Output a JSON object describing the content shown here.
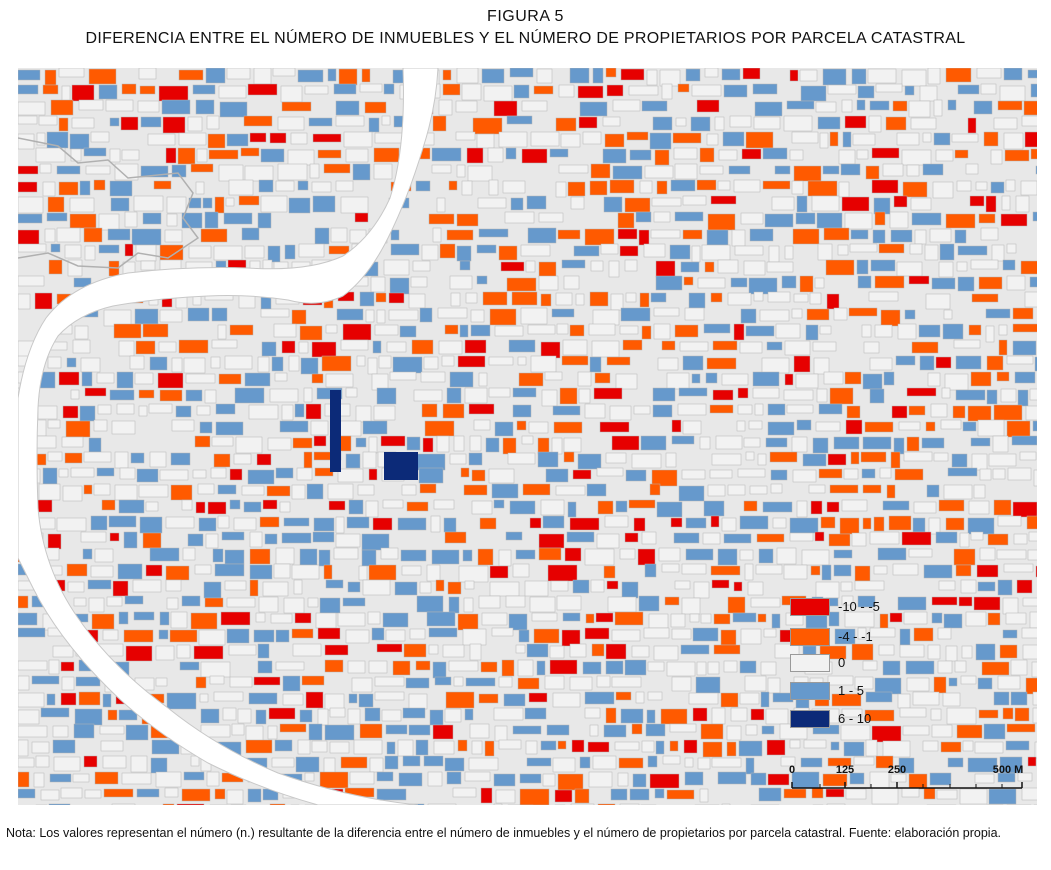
{
  "figure": {
    "label": "FIGURA 5",
    "title": "DIFERENCIA ENTRE EL NÚMERO DE INMUEBLES Y EL NÚMERO DE PROPIETARIOS POR PARCELA CATASTRAL"
  },
  "colors": {
    "class_neg_high": "#e60000",
    "class_neg_low": "#ff5a00",
    "class_zero": "#f2f2f2",
    "class_pos_low": "#6699cc",
    "class_pos_high": "#0c2a78",
    "river": "#ffffff",
    "background": "#e6e6e6",
    "block_outline": "#b4b4b4"
  },
  "legend": {
    "items": [
      {
        "label": "-10 - -5",
        "color": "#e60000"
      },
      {
        "label": "-4 - -1",
        "color": "#ff5a00"
      },
      {
        "label": "0",
        "color": "#f2f2f2"
      },
      {
        "label": "1 - 5",
        "color": "#6699cc"
      },
      {
        "label": "6 - 10",
        "color": "#0c2a78"
      }
    ]
  },
  "scale": {
    "ticks": [
      "0",
      "125",
      "250",
      "500 M"
    ]
  },
  "note": {
    "text": "Nota: Los valores representan el número (n.) resultante de la diferencia entre el número de inmuebles y el número de propietarios por parcela catastral. Fuente: elaboración propia."
  }
}
